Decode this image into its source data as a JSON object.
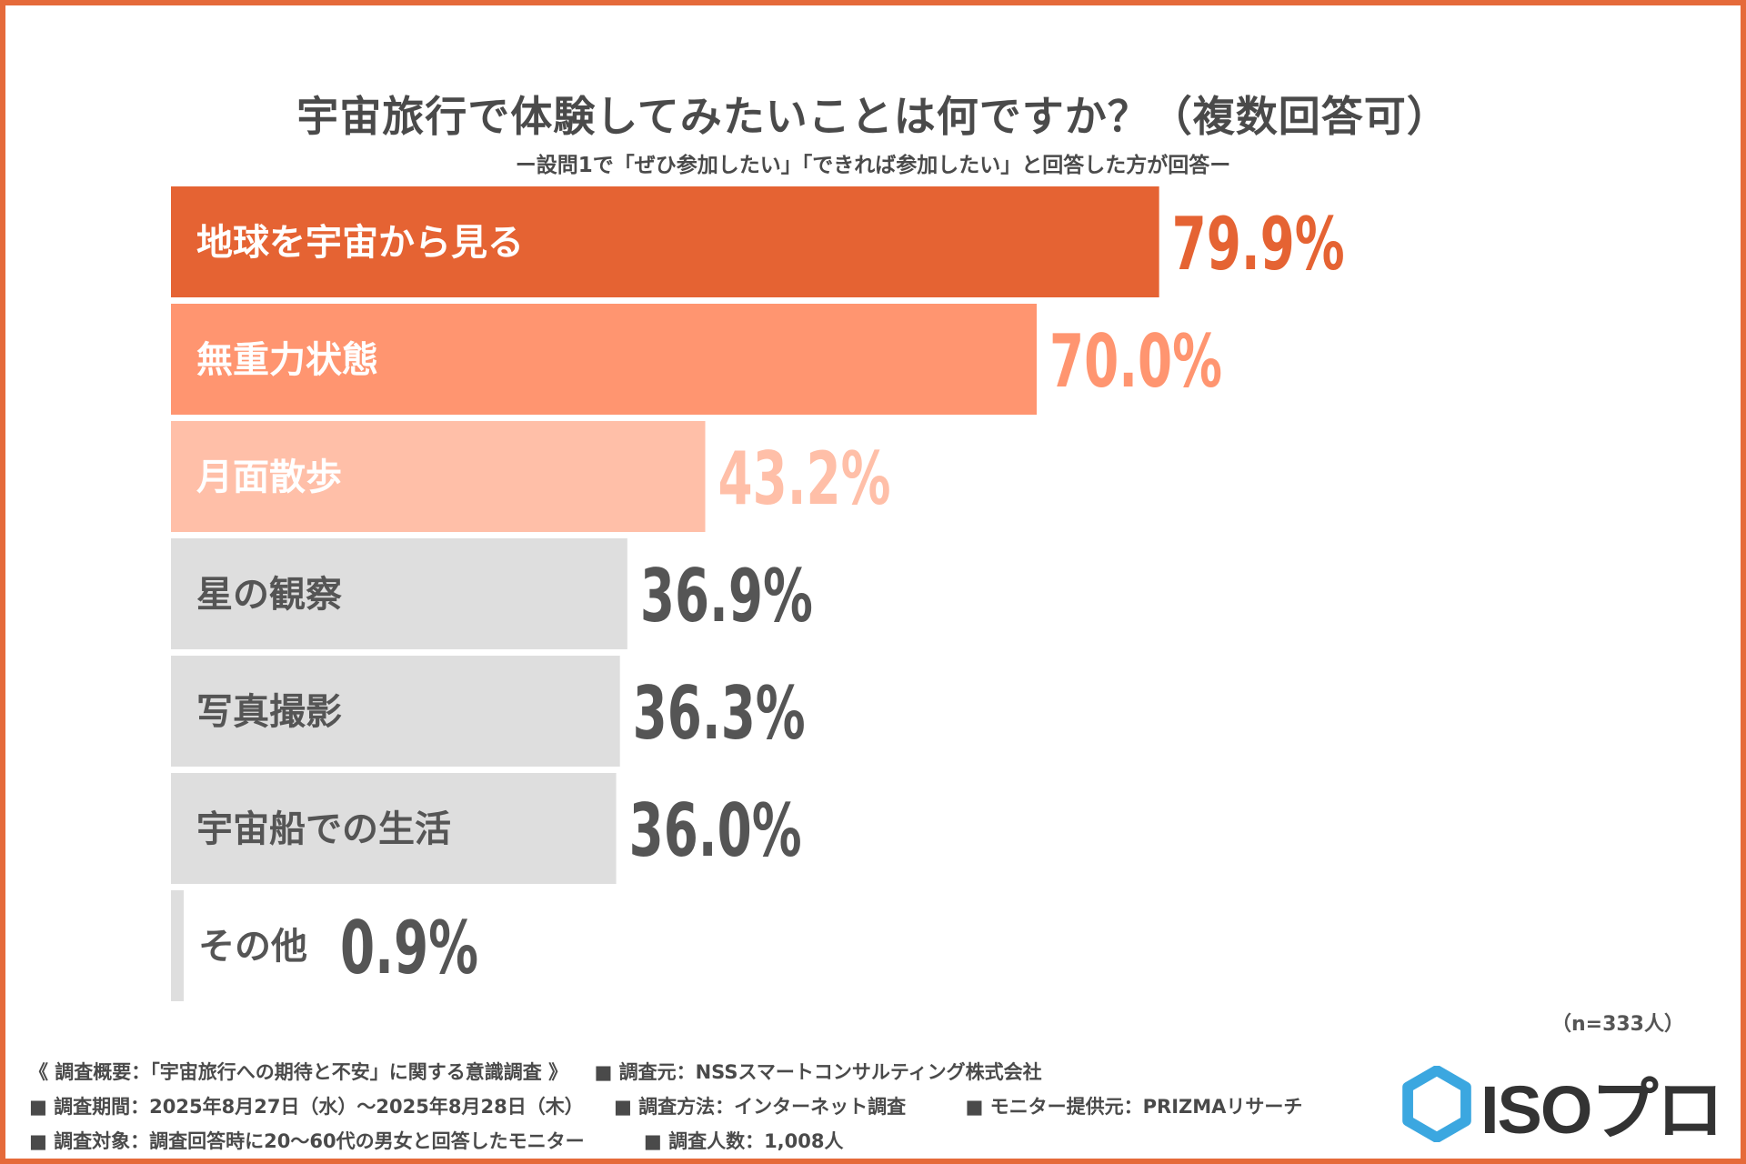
{
  "chart_data": {
    "type": "bar",
    "orientation": "horizontal",
    "title": "宇宙旅行で体験してみたいことは何ですか？（複数回答可）",
    "subtitle": "ー設問1で「ぜひ参加したい」「できれば参加したい」と回答した方が回答ー",
    "categories": [
      "地球を宇宙から見る",
      "無重力状態",
      "月面散歩",
      "星の観察",
      "写真撮影",
      "宇宙船での生活",
      "その他"
    ],
    "values": [
      79.9,
      70.0,
      43.2,
      36.9,
      36.3,
      36.0,
      0.9
    ],
    "value_labels": [
      "79.9%",
      "70.0%",
      "43.2%",
      "36.9%",
      "36.3%",
      "36.0%",
      "0.9%"
    ],
    "unit": "%",
    "xlim": [
      0,
      100
    ],
    "sample_note": "（n=333人）"
  },
  "colors": {
    "border": "#e56a3a",
    "bar_fills": [
      "#e56333",
      "#ff9570",
      "#ffbfa8",
      "#dedede",
      "#dedede",
      "#dedede",
      "#dedede"
    ],
    "label_in_bar": [
      "#ffffff",
      "#ffffff",
      "#ffffff",
      "#555555",
      "#555555",
      "#555555",
      "#555555"
    ],
    "value_text": [
      "#e56333",
      "#ff9570",
      "#ffbfa8",
      "#555555",
      "#555555",
      "#555555",
      "#555555"
    ],
    "logo_hex": "#3ba7e0"
  },
  "footer": {
    "line1": {
      "overview": "《 調査概要：「宇宙旅行への期待と不安」に関する意識調査 》",
      "source": "■ 調査元：NSSスマートコンサルティング株式会社"
    },
    "line2": {
      "period": "■ 調査期間：2025年8月27日（水）～2025年8月28日（木）",
      "method": "■ 調査方法：インターネット調査",
      "provider": "■ モニター提供元：PRIZMAリサーチ"
    },
    "line3": {
      "target": "■ 調査対象：調査回答時に20～60代の男女と回答したモニター",
      "count": "■ 調査人数：1,008人"
    }
  },
  "logo": {
    "text": "ISOプロ",
    "icon": "hexagon-icon"
  }
}
